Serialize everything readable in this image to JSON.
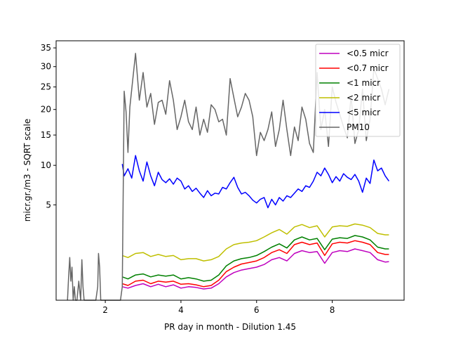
{
  "chart_data": {
    "type": "line",
    "title": "",
    "xlabel": "PR day in month - Dilution 1.45",
    "ylabel": "micr.gr./m3 - SQRT scale",
    "yscale": "sqrt",
    "xlim": [
      0.7,
      9.9
    ],
    "ylim": [
      0,
      37
    ],
    "x_ticks": [
      {
        "value": 2,
        "label": "2"
      },
      {
        "value": 4,
        "label": "4"
      },
      {
        "value": 6,
        "label": "6"
      },
      {
        "value": 8,
        "label": "8"
      }
    ],
    "y_ticks": [
      {
        "value": 5,
        "label": "5"
      },
      {
        "value": 10,
        "label": "10"
      },
      {
        "value": 15,
        "label": "15"
      },
      {
        "value": 20,
        "label": "20"
      },
      {
        "value": 25,
        "label": "25"
      },
      {
        "value": 30,
        "label": "30"
      },
      {
        "value": 35,
        "label": "35"
      }
    ],
    "grid": false,
    "legend_position": "top-right",
    "series": [
      {
        "name": "<0.5 micr",
        "color": "#bf00bf",
        "x": [
          2.45,
          2.6,
          2.8,
          3.0,
          3.2,
          3.4,
          3.6,
          3.8,
          4.0,
          4.2,
          4.4,
          4.6,
          4.8,
          5.0,
          5.2,
          5.4,
          5.6,
          5.8,
          6.0,
          6.2,
          6.4,
          6.6,
          6.8,
          7.0,
          7.2,
          7.4,
          7.6,
          7.8,
          8.0,
          8.2,
          8.4,
          8.6,
          8.8,
          9.0,
          9.2,
          9.4,
          9.5
        ],
        "y": [
          0.1,
          0.08,
          0.12,
          0.15,
          0.1,
          0.14,
          0.1,
          0.13,
          0.08,
          0.1,
          0.09,
          0.07,
          0.08,
          0.15,
          0.3,
          0.42,
          0.5,
          0.55,
          0.6,
          0.7,
          0.9,
          1.0,
          0.85,
          1.2,
          1.35,
          1.25,
          1.3,
          0.75,
          1.25,
          1.35,
          1.3,
          1.45,
          1.35,
          1.25,
          0.9,
          0.8,
          0.82
        ]
      },
      {
        "name": "<0.7 micr",
        "color": "#ff0000",
        "x": [
          2.45,
          2.6,
          2.8,
          3.0,
          3.2,
          3.4,
          3.6,
          3.8,
          4.0,
          4.2,
          4.4,
          4.6,
          4.8,
          5.0,
          5.2,
          5.4,
          5.6,
          5.8,
          6.0,
          6.2,
          6.4,
          6.6,
          6.8,
          7.0,
          7.2,
          7.4,
          7.6,
          7.8,
          8.0,
          8.2,
          8.4,
          8.6,
          8.8,
          9.0,
          9.2,
          9.4,
          9.5
        ],
        "y": [
          0.15,
          0.12,
          0.2,
          0.22,
          0.15,
          0.2,
          0.18,
          0.2,
          0.14,
          0.15,
          0.13,
          0.1,
          0.12,
          0.22,
          0.45,
          0.6,
          0.72,
          0.78,
          0.85,
          1.0,
          1.25,
          1.4,
          1.2,
          1.7,
          1.85,
          1.7,
          1.8,
          1.1,
          1.75,
          1.85,
          1.8,
          1.95,
          1.85,
          1.7,
          1.25,
          1.15,
          1.15
        ]
      },
      {
        "name": "<1 micr",
        "color": "#008000",
        "x": [
          2.45,
          2.6,
          2.8,
          3.0,
          3.2,
          3.4,
          3.6,
          3.8,
          4.0,
          4.2,
          4.4,
          4.6,
          4.8,
          5.0,
          5.2,
          5.4,
          5.6,
          5.8,
          6.0,
          6.2,
          6.4,
          6.6,
          6.8,
          7.0,
          7.2,
          7.4,
          7.6,
          7.8,
          8.0,
          8.2,
          8.4,
          8.6,
          8.8,
          9.0,
          9.2,
          9.4,
          9.5
        ],
        "y": [
          0.3,
          0.25,
          0.35,
          0.38,
          0.3,
          0.35,
          0.32,
          0.35,
          0.25,
          0.28,
          0.25,
          0.2,
          0.22,
          0.35,
          0.65,
          0.85,
          0.95,
          1.0,
          1.1,
          1.3,
          1.55,
          1.75,
          1.5,
          2.0,
          2.2,
          2.0,
          2.1,
          1.4,
          2.05,
          2.15,
          2.1,
          2.3,
          2.2,
          2.0,
          1.55,
          1.45,
          1.45
        ]
      },
      {
        "name": "<2 micr",
        "color": "#bfbf00",
        "x": [
          2.45,
          2.6,
          2.8,
          3.0,
          3.2,
          3.4,
          3.6,
          3.8,
          4.0,
          4.2,
          4.4,
          4.6,
          4.8,
          5.0,
          5.2,
          5.4,
          5.6,
          5.8,
          6.0,
          6.2,
          6.4,
          6.6,
          6.8,
          7.0,
          7.2,
          7.4,
          7.6,
          7.8,
          8.0,
          8.2,
          8.4,
          8.6,
          8.8,
          9.0,
          9.2,
          9.4,
          9.5
        ],
        "y": [
          1.1,
          1.0,
          1.2,
          1.25,
          1.05,
          1.15,
          1.05,
          1.1,
          0.9,
          0.95,
          0.95,
          0.85,
          0.9,
          1.05,
          1.45,
          1.7,
          1.8,
          1.85,
          1.95,
          2.2,
          2.5,
          2.75,
          2.4,
          2.95,
          3.15,
          2.9,
          3.05,
          2.2,
          2.95,
          3.05,
          3.0,
          3.2,
          3.1,
          2.9,
          2.45,
          2.35,
          2.35
        ]
      },
      {
        "name": "<5 micr",
        "color": "#0000ff",
        "x": [
          2.45,
          2.5,
          2.6,
          2.7,
          2.8,
          2.9,
          3.0,
          3.1,
          3.2,
          3.3,
          3.4,
          3.5,
          3.6,
          3.7,
          3.8,
          3.9,
          4.0,
          4.1,
          4.2,
          4.3,
          4.4,
          4.5,
          4.6,
          4.7,
          4.8,
          4.9,
          5.0,
          5.1,
          5.2,
          5.3,
          5.4,
          5.5,
          5.6,
          5.7,
          5.8,
          5.9,
          6.0,
          6.1,
          6.2,
          6.3,
          6.4,
          6.5,
          6.6,
          6.7,
          6.8,
          6.9,
          7.0,
          7.1,
          7.2,
          7.3,
          7.4,
          7.5,
          7.6,
          7.7,
          7.8,
          7.9,
          8.0,
          8.1,
          8.2,
          8.3,
          8.4,
          8.5,
          8.6,
          8.7,
          8.8,
          8.9,
          9.0,
          9.1,
          9.2,
          9.3,
          9.4,
          9.5
        ],
        "y": [
          10.2,
          8.5,
          9.5,
          8.2,
          11.5,
          9.2,
          7.8,
          10.5,
          8.5,
          7.2,
          9.0,
          8.0,
          7.6,
          8.1,
          7.4,
          8.2,
          7.8,
          6.8,
          7.2,
          6.5,
          6.9,
          6.3,
          5.8,
          6.6,
          6.0,
          6.3,
          6.2,
          7.0,
          6.8,
          7.6,
          8.3,
          7.0,
          6.2,
          6.4,
          6.0,
          5.5,
          5.2,
          5.6,
          5.8,
          4.7,
          5.6,
          5.0,
          5.8,
          5.4,
          6.0,
          5.8,
          6.3,
          6.8,
          6.5,
          7.2,
          7.0,
          7.8,
          9.0,
          8.5,
          9.6,
          8.7,
          7.6,
          8.4,
          7.8,
          8.8,
          8.3,
          8.0,
          8.7,
          7.8,
          6.4,
          8.2,
          7.5,
          10.8,
          9.2,
          9.6,
          8.5,
          7.8
        ]
      },
      {
        "name": "PM10",
        "color": "#666666",
        "x": [
          1.0,
          1.03,
          1.06,
          1.09,
          1.12,
          1.15,
          1.18,
          1.21,
          1.25,
          1.3,
          1.35,
          1.38,
          1.41,
          1.44,
          1.5,
          1.55,
          1.6,
          1.65,
          1.7,
          1.75,
          1.8,
          1.82,
          1.85,
          1.88,
          1.92,
          2.0,
          2.1,
          2.2,
          2.3,
          2.4,
          2.45,
          2.5,
          2.55,
          2.6,
          2.65,
          2.7,
          2.8,
          2.9,
          3.0,
          3.1,
          3.2,
          3.3,
          3.4,
          3.5,
          3.6,
          3.7,
          3.8,
          3.9,
          4.0,
          4.1,
          4.2,
          4.3,
          4.4,
          4.5,
          4.6,
          4.7,
          4.8,
          4.9,
          5.0,
          5.1,
          5.2,
          5.3,
          5.4,
          5.5,
          5.6,
          5.7,
          5.8,
          5.9,
          6.0,
          6.1,
          6.2,
          6.3,
          6.4,
          6.5,
          6.6,
          6.7,
          6.8,
          6.9,
          7.0,
          7.1,
          7.2,
          7.3,
          7.4,
          7.5,
          7.6,
          7.7,
          7.8,
          7.9,
          8.0,
          8.1,
          8.2,
          8.3,
          8.4,
          8.5,
          8.6,
          8.7,
          8.8,
          8.9,
          9.0,
          9.1,
          9.2,
          9.3,
          9.4,
          9.5
        ],
        "y": [
          0.0,
          0.3,
          1.0,
          0.2,
          0.6,
          0.0,
          0.1,
          0.0,
          0.0,
          0.2,
          0.0,
          0.9,
          0.1,
          0.0,
          0.0,
          0.0,
          0.0,
          0.0,
          0.0,
          0.0,
          0.1,
          1.2,
          0.6,
          0.0,
          0.0,
          0.0,
          0.0,
          0.0,
          0.0,
          0.0,
          0.1,
          24.0,
          19.5,
          12.0,
          20.5,
          24.5,
          33.5,
          22.0,
          28.5,
          20.5,
          23.5,
          17.0,
          21.5,
          22.0,
          19.0,
          26.5,
          22.0,
          16.0,
          18.5,
          22.0,
          17.5,
          16.0,
          20.5,
          15.0,
          18.0,
          15.5,
          21.0,
          20.0,
          17.5,
          18.0,
          15.0,
          27.0,
          22.5,
          18.5,
          20.5,
          23.5,
          22.0,
          18.5,
          11.5,
          15.5,
          14.0,
          16.0,
          19.5,
          13.0,
          16.0,
          22.0,
          16.0,
          11.5,
          16.5,
          14.0,
          20.5,
          18.0,
          13.5,
          12.0,
          28.5,
          16.0,
          20.0,
          13.0,
          25.0,
          21.5,
          19.0,
          16.5,
          14.5,
          23.0,
          13.5,
          16.0,
          24.5,
          14.0,
          18.0,
          29.5,
          27.0,
          24.5,
          21.0,
          24.5
        ]
      }
    ]
  }
}
